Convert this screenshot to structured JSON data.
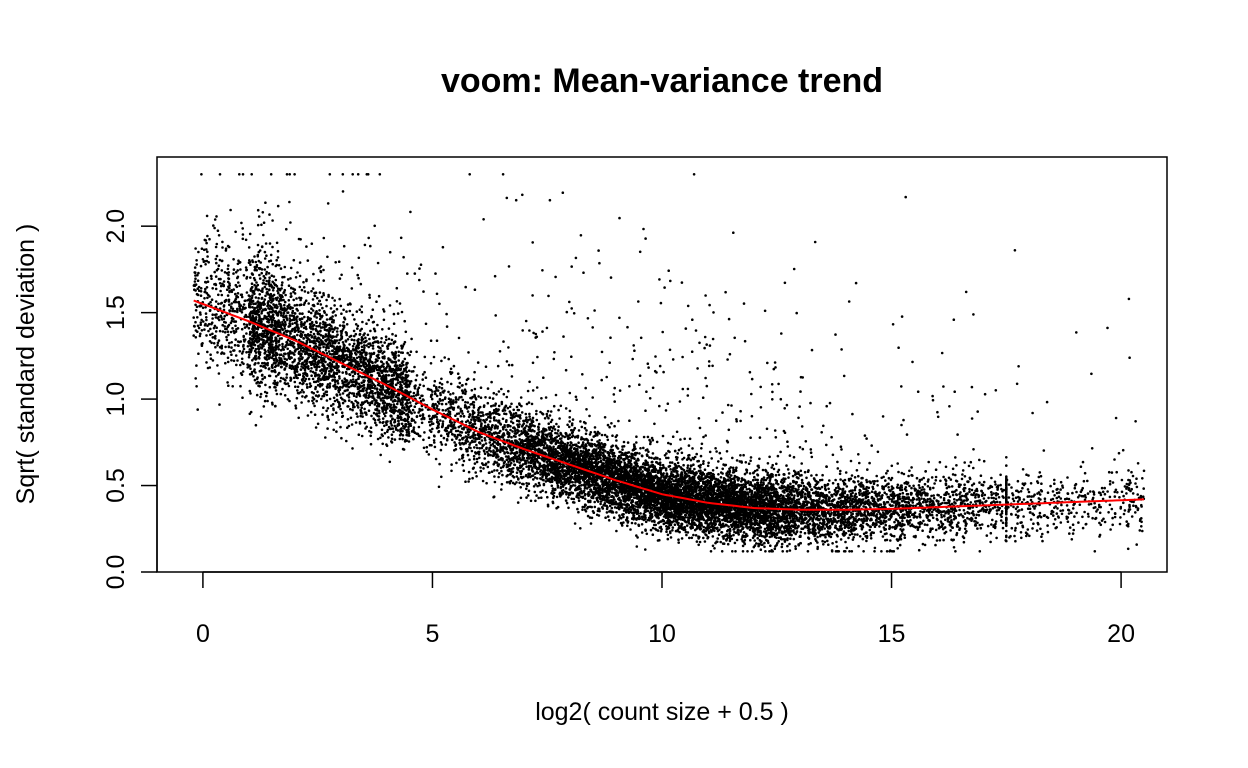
{
  "chart_data": {
    "type": "scatter",
    "title": "voom: Mean-variance trend",
    "xlabel": "log2( count size + 0.5 )",
    "ylabel": "Sqrt( standard deviation )",
    "xlim": [
      -1.0,
      21.0
    ],
    "ylim": [
      0.0,
      2.4
    ],
    "x_ticks": [
      0,
      5,
      10,
      15,
      20
    ],
    "x_tick_labels": [
      "0",
      "5",
      "10",
      "15",
      "20"
    ],
    "y_ticks": [
      0.0,
      0.5,
      1.0,
      1.5,
      2.0
    ],
    "y_tick_labels": [
      "0.0",
      "0.5",
      "1.0",
      "1.5",
      "2.0"
    ],
    "grid": false,
    "legend": "none",
    "point_color": "#000000",
    "trend_color": "#ff0000",
    "points_description_count": 14000,
    "trend": {
      "name": "",
      "x": [
        -0.2,
        1,
        2,
        3,
        4,
        5,
        6,
        7,
        8,
        9,
        10,
        11,
        12,
        13,
        14,
        15,
        16,
        17,
        18,
        19,
        20,
        20.5
      ],
      "y": [
        1.57,
        1.45,
        1.34,
        1.21,
        1.08,
        0.94,
        0.81,
        0.71,
        0.62,
        0.53,
        0.45,
        0.4,
        0.37,
        0.36,
        0.36,
        0.365,
        0.375,
        0.385,
        0.395,
        0.405,
        0.415,
        0.42
      ]
    }
  }
}
